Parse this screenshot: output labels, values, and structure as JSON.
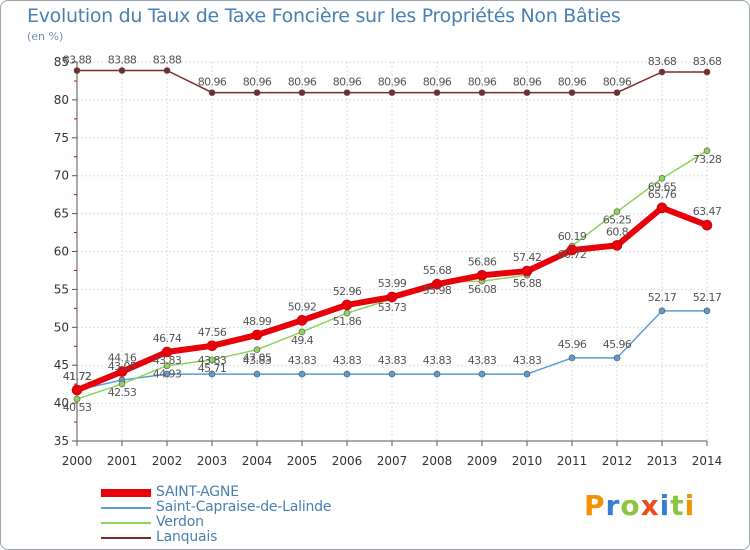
{
  "title": "Evolution du Taux de Taxe Foncière sur les Propriétés Non Bâties",
  "unit_label": "(en %)",
  "brand": [
    "P",
    "r",
    "o",
    "x",
    "i",
    "t",
    "i"
  ],
  "brand_colors": [
    "#f39200",
    "#3a7bd5",
    "#8cc63f",
    "#e94e1b",
    "#3a7bd5",
    "#8cc63f",
    "#f39200"
  ],
  "chart_data": {
    "type": "line",
    "title": "Evolution du Taux de Taxe Foncière sur les Propriétés Non Bâties",
    "ylabel": "(en %)",
    "x": [
      "2000",
      "2001",
      "2002",
      "2003",
      "2004",
      "2005",
      "2006",
      "2007",
      "2008",
      "2009",
      "2010",
      "2011",
      "2012",
      "2013",
      "2014"
    ],
    "ylim": [
      35,
      85
    ],
    "yticks": [
      35,
      40,
      45,
      50,
      55,
      60,
      65,
      70,
      75,
      80,
      85
    ],
    "grid": true,
    "legend_position": "bottom-left",
    "series": [
      {
        "name": "SAINT-AGNE",
        "color": "#e8000b",
        "values": [
          41.72,
          44.16,
          46.74,
          47.56,
          48.99,
          50.92,
          52.96,
          53.99,
          55.68,
          56.86,
          57.42,
          60.19,
          60.8,
          65.76,
          63.47
        ]
      },
      {
        "name": "Saint-Capraise-de-Lalinde",
        "color": "#5b9bd5",
        "values": [
          41.72,
          43.05,
          43.83,
          43.83,
          43.83,
          43.83,
          43.83,
          43.83,
          43.83,
          43.83,
          43.83,
          45.96,
          45.96,
          52.17,
          52.17
        ]
      },
      {
        "name": "Verdon",
        "color": "#8cd45a",
        "values": [
          40.53,
          42.53,
          44.93,
          45.71,
          47.05,
          49.4,
          51.86,
          53.73,
          55.98,
          56.08,
          56.88,
          60.72,
          65.25,
          69.65,
          73.28
        ]
      },
      {
        "name": "Lanquais",
        "color": "#7a2a2a",
        "values": [
          83.88,
          83.88,
          83.88,
          80.96,
          80.96,
          80.96,
          80.96,
          80.96,
          80.96,
          80.96,
          80.96,
          80.96,
          80.96,
          83.68,
          83.68
        ]
      }
    ]
  }
}
